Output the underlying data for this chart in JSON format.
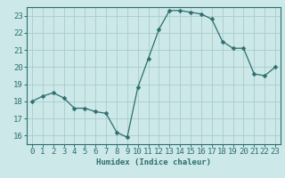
{
  "x": [
    0,
    1,
    2,
    3,
    4,
    5,
    6,
    7,
    8,
    9,
    10,
    11,
    12,
    13,
    14,
    15,
    16,
    17,
    18,
    19,
    20,
    21,
    22,
    23
  ],
  "y": [
    18.0,
    18.3,
    18.5,
    18.2,
    17.6,
    17.6,
    17.4,
    17.3,
    16.2,
    15.9,
    18.8,
    20.5,
    22.2,
    23.3,
    23.3,
    23.2,
    23.1,
    22.8,
    21.5,
    21.1,
    21.1,
    19.6,
    19.5,
    20.0
  ],
  "line_color": "#2d6e6e",
  "marker": "D",
  "marker_size": 2.5,
  "bg_color": "#cce8e8",
  "grid_color": "#aacccc",
  "xlabel": "Humidex (Indice chaleur)",
  "xlim": [
    -0.5,
    23.5
  ],
  "ylim": [
    15.5,
    23.5
  ],
  "yticks": [
    16,
    17,
    18,
    19,
    20,
    21,
    22,
    23
  ],
  "xticks": [
    0,
    1,
    2,
    3,
    4,
    5,
    6,
    7,
    8,
    9,
    10,
    11,
    12,
    13,
    14,
    15,
    16,
    17,
    18,
    19,
    20,
    21,
    22,
    23
  ],
  "xlabel_fontsize": 6.5,
  "tick_fontsize": 6.5,
  "axis_color": "#2d6e6e"
}
